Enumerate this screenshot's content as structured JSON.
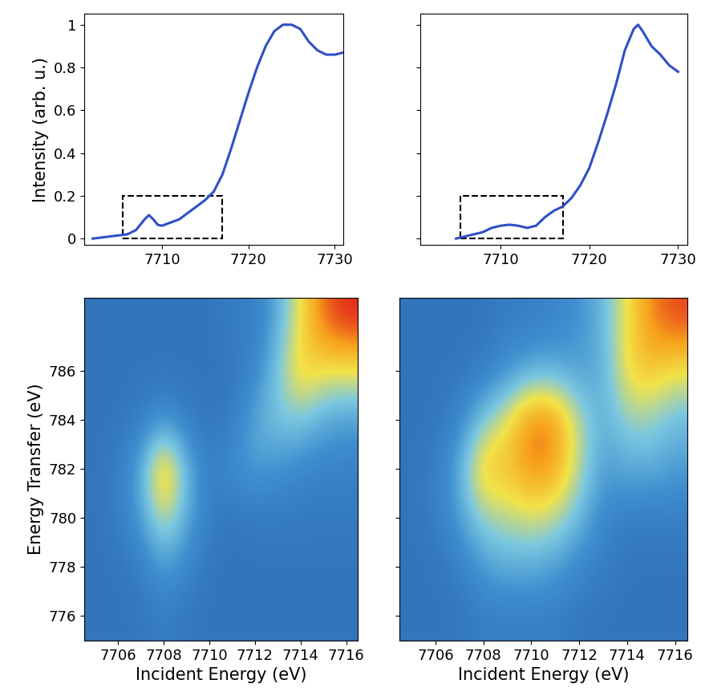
{
  "chart_data": [
    {
      "type": "line",
      "ylabel": "Intensity (arb. u.)",
      "color": "#2f4fc4",
      "x": [
        7702,
        7704,
        7706,
        7707,
        7708,
        7708.5,
        7709,
        7709.5,
        7710,
        7711,
        7712,
        7713,
        7714,
        7715,
        7716,
        7717,
        7718,
        7719,
        7720,
        7721,
        7722,
        7723,
        7724,
        7725,
        7726,
        7727,
        7728,
        7729,
        7730,
        7731
      ],
      "values": [
        0.0,
        0.01,
        0.02,
        0.04,
        0.09,
        0.11,
        0.09,
        0.065,
        0.06,
        0.075,
        0.09,
        0.12,
        0.15,
        0.18,
        0.22,
        0.3,
        0.42,
        0.55,
        0.68,
        0.8,
        0.9,
        0.97,
        1.0,
        1.0,
        0.98,
        0.92,
        0.88,
        0.86,
        0.86,
        0.87
      ],
      "xlim": [
        7701,
        7731
      ],
      "xticks": [
        7710,
        7720,
        7730
      ],
      "ylim": [
        -0.03,
        1.05
      ],
      "yticks": [
        0,
        0.2,
        0.4,
        0.6,
        0.8,
        1
      ],
      "highlight": {
        "x": [
          7705.5,
          7717
        ],
        "y": [
          0,
          0.2
        ]
      }
    },
    {
      "type": "line",
      "color": "#2f4fc4",
      "tick_labels": "x",
      "x": [
        7705,
        7706,
        7707,
        7708,
        7709,
        7710,
        7711,
        7712,
        7713,
        7714,
        7715,
        7716,
        7717,
        7718,
        7719,
        7720,
        7721,
        7722,
        7723,
        7724,
        7725,
        7725.5,
        7726,
        7727,
        7728,
        7729,
        7730
      ],
      "values": [
        0.0,
        0.01,
        0.02,
        0.03,
        0.05,
        0.06,
        0.065,
        0.06,
        0.05,
        0.06,
        0.1,
        0.13,
        0.15,
        0.19,
        0.25,
        0.33,
        0.45,
        0.58,
        0.72,
        0.88,
        0.98,
        1.0,
        0.97,
        0.9,
        0.86,
        0.81,
        0.78
      ],
      "xlim": [
        7701,
        7731
      ],
      "xticks": [
        7710,
        7720,
        7730
      ],
      "ylim": [
        -0.03,
        1.05
      ],
      "yticks": [
        0,
        0.2,
        0.4,
        0.6,
        0.8,
        1
      ],
      "highlight": {
        "x": [
          7705.5,
          7717
        ],
        "y": [
          0,
          0.2
        ]
      }
    },
    {
      "type": "heatmap",
      "xlabel": "Incident Energy (eV)",
      "ylabel": "Energy Transfer (eV)",
      "x": [
        7705,
        7706,
        7707,
        7708,
        7709,
        7710,
        7711,
        7712,
        7713,
        7714,
        7715,
        7716
      ],
      "y": [
        776,
        778,
        780,
        782,
        784,
        786,
        788
      ],
      "cells": [
        [
          0.05,
          0.05,
          0.06,
          0.1,
          0.06,
          0.05,
          0.05,
          0.05,
          0.05,
          0.05,
          0.05,
          0.05
        ],
        [
          0.05,
          0.05,
          0.1,
          0.25,
          0.15,
          0.05,
          0.05,
          0.05,
          0.05,
          0.05,
          0.05,
          0.05
        ],
        [
          0.05,
          0.1,
          0.25,
          0.55,
          0.3,
          0.1,
          0.05,
          0.08,
          0.08,
          0.08,
          0.08,
          0.08
        ],
        [
          0.05,
          0.1,
          0.3,
          0.85,
          0.35,
          0.1,
          0.2,
          0.25,
          0.2,
          0.15,
          0.12,
          0.12
        ],
        [
          0.05,
          0.05,
          0.1,
          0.2,
          0.1,
          0.05,
          0.1,
          0.3,
          0.4,
          0.4,
          0.3,
          0.25
        ],
        [
          0.05,
          0.05,
          0.05,
          0.05,
          0.05,
          0.05,
          0.05,
          0.15,
          0.4,
          0.7,
          0.6,
          0.6
        ],
        [
          0.05,
          0.05,
          0.05,
          0.05,
          0.05,
          0.05,
          0.1,
          0.1,
          0.3,
          0.6,
          0.9,
          1.0
        ]
      ],
      "color_range": [
        0,
        1
      ],
      "xlim": [
        7704.5,
        7716.5
      ],
      "xticks": [
        7706,
        7708,
        7710,
        7712,
        7714,
        7716
      ],
      "ylim": [
        775,
        789
      ],
      "yticks": [
        776,
        778,
        780,
        782,
        784,
        786
      ]
    },
    {
      "type": "heatmap",
      "xlabel": "Incident Energy (eV)",
      "tick_labels": "x",
      "x": [
        7705,
        7706,
        7707,
        7708,
        7709,
        7710,
        7711,
        7712,
        7713,
        7714,
        7715,
        7716
      ],
      "y": [
        776,
        778,
        780,
        782,
        784,
        786,
        788
      ],
      "cells": [
        [
          0.05,
          0.05,
          0.06,
          0.1,
          0.1,
          0.1,
          0.1,
          0.06,
          0.05,
          0.05,
          0.05,
          0.05
        ],
        [
          0.05,
          0.05,
          0.1,
          0.25,
          0.3,
          0.3,
          0.25,
          0.15,
          0.1,
          0.05,
          0.05,
          0.05
        ],
        [
          0.05,
          0.1,
          0.25,
          0.45,
          0.5,
          0.55,
          0.5,
          0.35,
          0.15,
          0.1,
          0.1,
          0.1
        ],
        [
          0.05,
          0.1,
          0.3,
          0.75,
          0.7,
          0.85,
          0.8,
          0.5,
          0.25,
          0.3,
          0.3,
          0.25
        ],
        [
          0.05,
          0.05,
          0.15,
          0.4,
          0.6,
          0.9,
          0.85,
          0.5,
          0.3,
          0.45,
          0.45,
          0.35
        ],
        [
          0.05,
          0.05,
          0.05,
          0.1,
          0.2,
          0.3,
          0.3,
          0.25,
          0.3,
          0.65,
          0.7,
          0.6
        ],
        [
          0.05,
          0.05,
          0.05,
          0.05,
          0.1,
          0.1,
          0.15,
          0.2,
          0.35,
          0.6,
          0.85,
          0.95
        ]
      ],
      "color_range": [
        0,
        1
      ],
      "xlim": [
        7704.5,
        7716.5
      ],
      "xticks": [
        7706,
        7708,
        7710,
        7712,
        7714,
        7716
      ],
      "ylim": [
        775,
        789
      ],
      "yticks": [
        776,
        778,
        780,
        782,
        784,
        786
      ]
    }
  ]
}
